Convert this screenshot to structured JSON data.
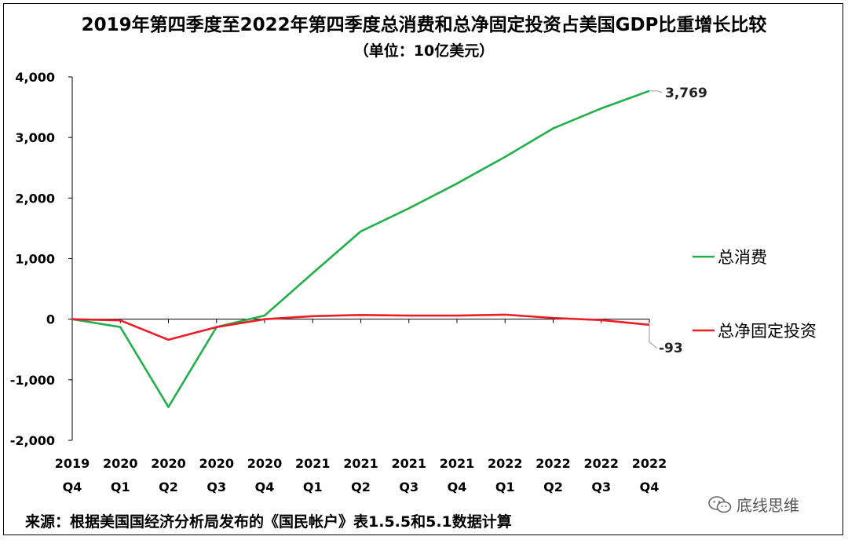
{
  "title": "2019年第四季度至2022年第四季度总消费和总净固定投资占美国GDP比重增长比较",
  "subtitle": "（单位：10亿美元）",
  "source": "来源：根据美国国经济分析局发布的《国民帐户》表1.5.5和5.1数据计算",
  "watermark": {
    "text": "底线思维",
    "icon": "wechat-icon"
  },
  "colors": {
    "consumption": "#22b04b",
    "investment": "#ee1c25",
    "axis": "#000000",
    "leader": "#a6a6a6"
  },
  "chart_data": {
    "type": "line",
    "title": "2019年第四季度至2022年第四季度总消费和总净固定投资占美国GDP比重增长比较",
    "subtitle": "（单位：10亿美元）",
    "xlabel": "",
    "ylabel": "",
    "ylim": [
      -2000,
      4000
    ],
    "yticks": [
      4000,
      3000,
      2000,
      1000,
      0,
      -1000,
      -2000
    ],
    "ytick_labels": [
      "4,000",
      "3,000",
      "2,000",
      "1,000",
      "0",
      "-1,000",
      "-2,000"
    ],
    "categories": [
      {
        "year": "2019",
        "q": "Q4"
      },
      {
        "year": "2020",
        "q": "Q1"
      },
      {
        "year": "2020",
        "q": "Q2"
      },
      {
        "year": "2020",
        "q": "Q3"
      },
      {
        "year": "2020",
        "q": "Q4"
      },
      {
        "year": "2021",
        "q": "Q1"
      },
      {
        "year": "2021",
        "q": "Q2"
      },
      {
        "year": "2021",
        "q": "Q3"
      },
      {
        "year": "2021",
        "q": "Q4"
      },
      {
        "year": "2022",
        "q": "Q1"
      },
      {
        "year": "2022",
        "q": "Q2"
      },
      {
        "year": "2022",
        "q": "Q3"
      },
      {
        "year": "2022",
        "q": "Q4"
      }
    ],
    "series": [
      {
        "name": "总消费",
        "color": "#22b04b",
        "values": [
          0,
          -130,
          -1450,
          -130,
          60,
          760,
          1450,
          1830,
          2240,
          2680,
          3150,
          3480,
          3769
        ],
        "end_label": "3,769"
      },
      {
        "name": "总净固定投资",
        "color": "#ee1c25",
        "values": [
          0,
          -20,
          -340,
          -130,
          0,
          50,
          70,
          60,
          60,
          75,
          20,
          -15,
          -93
        ],
        "end_label": "-93"
      }
    ],
    "legend": "right"
  }
}
